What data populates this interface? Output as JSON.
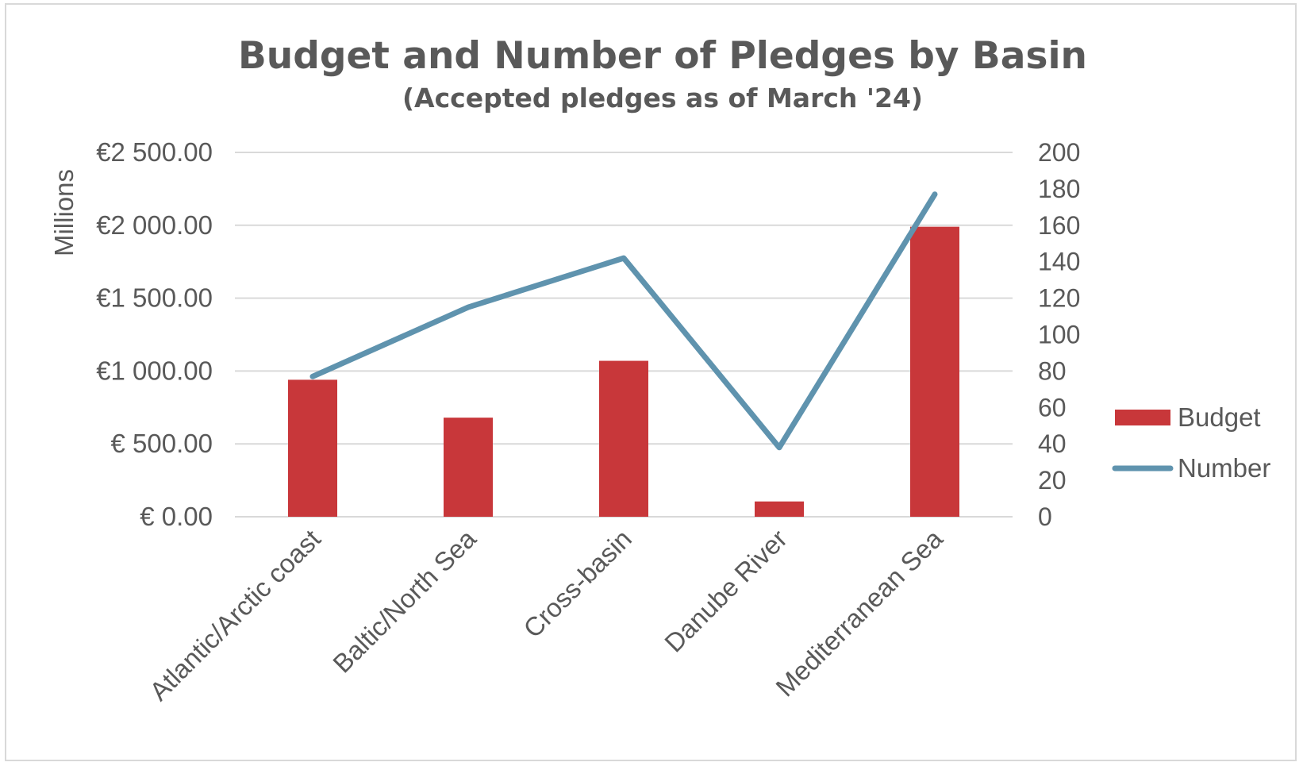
{
  "chart_data": {
    "type": "bar",
    "title": "Budget and Number of Pledges by Basin",
    "subtitle": "(Accepted pledges as of March '24)",
    "categories": [
      "Atlantic/Arctic coast",
      "Baltic/North Sea",
      "Cross-basin",
      "Danube River",
      "Mediterranean Sea"
    ],
    "series": [
      {
        "name": "Budget",
        "type": "bar",
        "axis": "left",
        "values": [
          940,
          680,
          1070,
          105,
          1990
        ],
        "color": "#c8373a"
      },
      {
        "name": "Number",
        "type": "line",
        "axis": "right",
        "values": [
          77,
          115,
          142,
          38,
          177
        ],
        "color": "#5f93ae"
      }
    ],
    "y_left": {
      "label": "Millions",
      "ylim": [
        0,
        2500
      ],
      "ticks": [
        0,
        500,
        1000,
        1500,
        2000,
        2500
      ],
      "tick_labels": [
        "€ 0.00",
        "€ 500.00",
        "€1 000.00",
        "€1 500.00",
        "€2 000.00",
        "€2 500.00"
      ]
    },
    "y_right": {
      "ylim": [
        0,
        200
      ],
      "ticks": [
        0,
        20,
        40,
        60,
        80,
        100,
        120,
        140,
        160,
        180,
        200
      ],
      "tick_labels": [
        "0",
        "20",
        "40",
        "60",
        "80",
        "100",
        "120",
        "140",
        "160",
        "180",
        "200"
      ]
    },
    "grid": true,
    "legend_position": "right"
  }
}
